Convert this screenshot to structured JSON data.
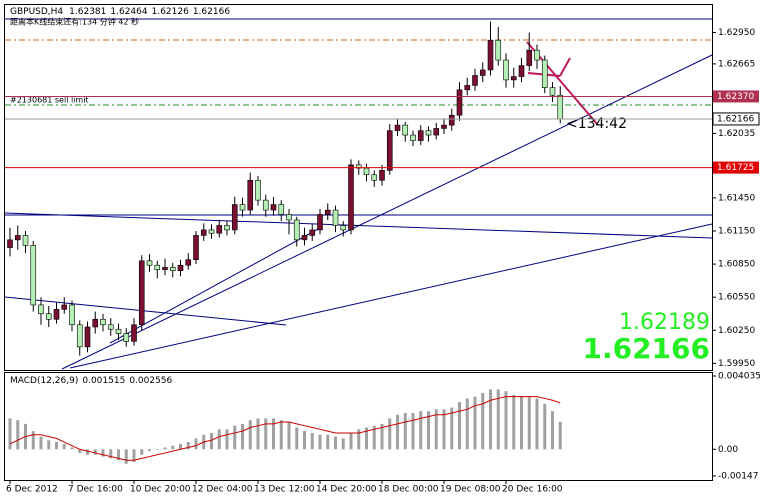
{
  "chart_data": {
    "type": "candlestick",
    "symbol": "GBPUSD,H4",
    "status_text": "距离本K线结束还有:134 分钟 42 秒",
    "order_label": "#2130681 sell limit",
    "countdown": "<134:42",
    "ask": 1.62189,
    "up_color": "#7a1030",
    "down_color": "#b4f0b4",
    "categories": [
      "6 Dec 2012",
      null,
      null,
      null,
      null,
      null,
      null,
      null,
      "7 Dec 16:00",
      null,
      null,
      null,
      null,
      null,
      null,
      null,
      "10 Dec 20:00",
      null,
      null,
      null,
      null,
      null,
      null,
      null,
      "12 Dec 04:00",
      null,
      null,
      null,
      null,
      null,
      null,
      null,
      "13 Dec 12:00",
      null,
      null,
      null,
      null,
      null,
      null,
      null,
      "14 Dec 20:00",
      null,
      null,
      null,
      null,
      null,
      null,
      null,
      "18 Dec 00:00",
      null,
      null,
      null,
      null,
      null,
      null,
      null,
      "19 Dec 08:00",
      null,
      null,
      null,
      null,
      null,
      null,
      null,
      "20 Dec 16:00",
      null,
      null,
      null,
      null,
      null,
      null,
      null
    ],
    "open": [
      1.61,
      1.6107,
      1.6111,
      1.6102,
      1.6048,
      1.604,
      1.6035,
      1.6044,
      1.6048,
      1.603,
      1.601,
      1.6028,
      1.6035,
      1.603,
      1.6026,
      1.6022,
      1.6015,
      1.603,
      1.6088,
      1.6084,
      1.608,
      1.6082,
      1.6079,
      1.6084,
      1.6089,
      1.6111,
      1.6116,
      1.6113,
      1.612,
      1.6116,
      1.6139,
      1.6134,
      1.6161,
      1.6143,
      1.6134,
      1.6139,
      1.613,
      1.6125,
      1.6107,
      1.6111,
      1.6116,
      1.613,
      1.6134,
      1.612,
      1.6116,
      1.6175,
      1.6172,
      1.6166,
      1.6161,
      1.617,
      1.6206,
      1.6211,
      1.6202,
      1.6197,
      1.6206,
      1.6202,
      1.6208,
      1.6211,
      1.622,
      1.6243,
      1.6247,
      1.6256,
      1.6261,
      1.6288,
      1.627,
      1.6252,
      1.6255,
      1.6265,
      1.6279,
      1.627,
      1.6245,
      1.62381
    ],
    "high": [
      1.6118,
      1.612,
      1.6115,
      1.6106,
      1.6055,
      1.6047,
      1.605,
      1.6055,
      1.6052,
      1.6034,
      1.6033,
      1.6042,
      1.604,
      1.6036,
      1.6031,
      1.6027,
      1.6036,
      1.6093,
      1.6094,
      1.6088,
      1.609,
      1.6086,
      1.6089,
      1.6095,
      1.6115,
      1.6122,
      1.6121,
      1.6125,
      1.6124,
      1.6146,
      1.6145,
      1.6168,
      1.6165,
      1.6148,
      1.6146,
      1.6143,
      1.6135,
      1.6128,
      1.6118,
      1.6121,
      1.6135,
      1.614,
      1.6138,
      1.6124,
      1.618,
      1.6179,
      1.6176,
      1.617,
      1.6175,
      1.6212,
      1.6217,
      1.6214,
      1.6206,
      1.6211,
      1.621,
      1.6213,
      1.6217,
      1.6226,
      1.625,
      1.6254,
      1.6262,
      1.6268,
      1.6305,
      1.63,
      1.6276,
      1.6263,
      1.6272,
      1.6295,
      1.6284,
      1.6274,
      1.625,
      1.62464
    ],
    "low": [
      1.6092,
      1.6098,
      1.6095,
      1.6042,
      1.603,
      1.6028,
      1.6031,
      1.604,
      1.6024,
      1.6002,
      1.6005,
      1.6022,
      1.6024,
      1.602,
      1.6016,
      1.601,
      1.6011,
      1.6025,
      1.6078,
      1.6072,
      1.6075,
      1.6073,
      1.6074,
      1.608,
      1.6085,
      1.6106,
      1.6108,
      1.6109,
      1.6111,
      1.6112,
      1.6128,
      1.613,
      1.6138,
      1.6128,
      1.6129,
      1.6124,
      1.6112,
      1.6101,
      1.6102,
      1.6106,
      1.6112,
      1.6125,
      1.6114,
      1.611,
      1.6112,
      1.6166,
      1.616,
      1.6155,
      1.6156,
      1.6166,
      1.6201,
      1.6196,
      1.6192,
      1.6193,
      1.6196,
      1.6198,
      1.6203,
      1.6206,
      1.6215,
      1.6238,
      1.6242,
      1.625,
      1.6256,
      1.6265,
      1.6245,
      1.6245,
      1.625,
      1.626,
      1.6262,
      1.624,
      1.6232,
      1.62126
    ],
    "close": [
      1.6107,
      1.6111,
      1.6102,
      1.6048,
      1.604,
      1.6035,
      1.6044,
      1.6048,
      1.603,
      1.601,
      1.6028,
      1.6035,
      1.603,
      1.6026,
      1.6022,
      1.6015,
      1.603,
      1.6088,
      1.6084,
      1.608,
      1.6082,
      1.6079,
      1.6084,
      1.6089,
      1.6111,
      1.6116,
      1.6113,
      1.612,
      1.6116,
      1.6139,
      1.6134,
      1.6161,
      1.6143,
      1.6134,
      1.6139,
      1.613,
      1.6125,
      1.6107,
      1.6111,
      1.6116,
      1.613,
      1.6134,
      1.612,
      1.6116,
      1.6175,
      1.6172,
      1.6166,
      1.6161,
      1.617,
      1.6206,
      1.6211,
      1.6202,
      1.6197,
      1.6206,
      1.6202,
      1.6208,
      1.6211,
      1.622,
      1.6243,
      1.6247,
      1.6256,
      1.6261,
      1.6288,
      1.627,
      1.6252,
      1.6255,
      1.6265,
      1.6279,
      1.627,
      1.6245,
      1.62381,
      1.62166
    ],
    "ylim": [
      1.5989,
      1.6319
    ],
    "yticks": [
      {
        "value": 1.6295,
        "label": "1.62950"
      },
      {
        "value": 1.62665,
        "label": "1.62665"
      },
      {
        "value": 1.62035,
        "label": "1.62035"
      },
      {
        "value": 1.6145,
        "label": "1.61450"
      },
      {
        "value": 1.6115,
        "label": "1.61150"
      },
      {
        "value": 1.6085,
        "label": "1.60850"
      },
      {
        "value": 1.6055,
        "label": "1.60550"
      },
      {
        "value": 1.6025,
        "label": "1.60250"
      },
      {
        "value": 1.5995,
        "label": "1.59950"
      }
    ],
    "levels": [
      {
        "value": 1.6237,
        "label": "1.62370",
        "color": "#b03050"
      },
      {
        "value": 1.61725,
        "label": "1.61725",
        "color": "#e00000"
      }
    ],
    "macd": {
      "name": "MACD(12,26,9)",
      "hist_color": "#a0a0a0",
      "signal_color": "#cc0000",
      "histogram": [
        0.0017,
        0.0016,
        0.0014,
        0.001,
        0.0007,
        0.0005,
        0.0004,
        0.0003,
        0.0001,
        -0.0002,
        -0.0003,
        -0.0003,
        -0.0004,
        -0.0005,
        -0.0006,
        -0.0008,
        -0.0007,
        -0.0003,
        -0.0001,
        0.0,
        0.0001,
        0.0002,
        0.0003,
        0.0004,
        0.0006,
        0.0008,
        0.0009,
        0.0011,
        0.0011,
        0.0013,
        0.0014,
        0.0016,
        0.0017,
        0.0017,
        0.0017,
        0.0016,
        0.0015,
        0.0012,
        0.001,
        0.0009,
        0.0008,
        0.0008,
        0.0007,
        0.0006,
        0.0009,
        0.0011,
        0.0012,
        0.0013,
        0.0014,
        0.0017,
        0.0019,
        0.002,
        0.002,
        0.0021,
        0.0021,
        0.0022,
        0.0022,
        0.0023,
        0.0026,
        0.0028,
        0.0029,
        0.0031,
        0.0033,
        0.0033,
        0.0032,
        0.003,
        0.0029,
        0.0029,
        0.0028,
        0.0025,
        0.0021,
        0.001515
      ],
      "signal": [
        0.0003,
        0.0005,
        0.0007,
        0.0008,
        0.0008,
        0.0007,
        0.0006,
        0.0004,
        0.0002,
        0.0,
        -0.0001,
        -0.0002,
        -0.0003,
        -0.0004,
        -0.0005,
        -0.0006,
        -0.0006,
        -0.0005,
        -0.0004,
        -0.0003,
        -0.0002,
        -0.0001,
        0.0,
        0.0001,
        0.0002,
        0.0004,
        0.0005,
        0.0007,
        0.0008,
        0.0009,
        0.001,
        0.0012,
        0.0013,
        0.0014,
        0.0014,
        0.0015,
        0.0015,
        0.0014,
        0.0013,
        0.0012,
        0.0011,
        0.001,
        0.0009,
        0.0009,
        0.0009,
        0.0009,
        0.001,
        0.0011,
        0.0012,
        0.0013,
        0.0014,
        0.0015,
        0.0016,
        0.0017,
        0.0018,
        0.0019,
        0.0019,
        0.002,
        0.0021,
        0.0022,
        0.0024,
        0.0025,
        0.0027,
        0.0028,
        0.0029,
        0.0029,
        0.0029,
        0.0029,
        0.0029,
        0.0028,
        0.0027,
        0.002556
      ],
      "ylim": [
        -0.00147,
        0.004035
      ],
      "yticks": [
        0.004035,
        {
          "value": 0,
          "label": "0.00"
        },
        -0.00147
      ]
    }
  }
}
